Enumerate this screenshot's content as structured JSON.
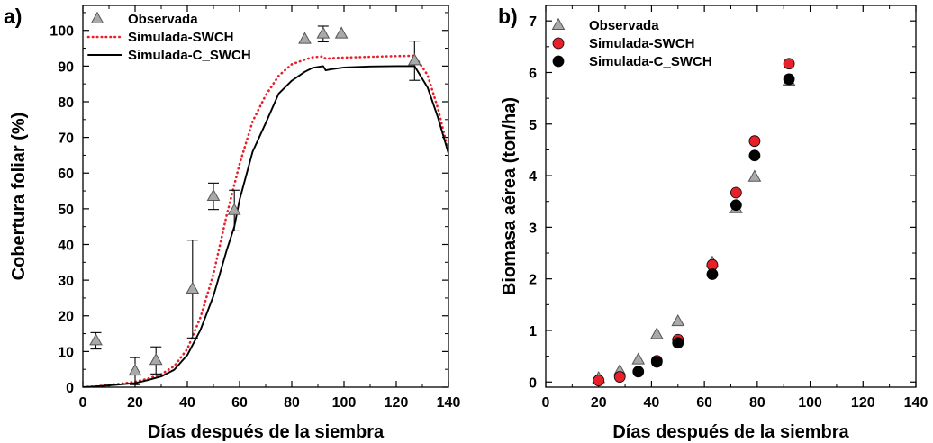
{
  "chart_data": [
    {
      "id": "a",
      "panel_label": "a)",
      "type": "scatter",
      "xlabel": "Días después de la siembra",
      "ylabel": "Cobertura foliar (%)",
      "xlim": [
        0,
        140
      ],
      "ylim": [
        0,
        107
      ],
      "xticks": [
        0,
        20,
        40,
        60,
        80,
        100,
        120,
        140
      ],
      "yticks": [
        0,
        10,
        20,
        30,
        40,
        50,
        60,
        70,
        80,
        90,
        100
      ],
      "legend_position": "top-left",
      "series": [
        {
          "name": "Observada",
          "kind": "scatter",
          "marker": "triangle",
          "color": "#a9a9a9",
          "points": [
            {
              "x": 5,
              "y": 13,
              "err": 2.3
            },
            {
              "x": 20,
              "y": 4.5,
              "err": 3.8
            },
            {
              "x": 28,
              "y": 7.5,
              "err": 3.8
            },
            {
              "x": 42,
              "y": 27.5,
              "err": 13.7
            },
            {
              "x": 50,
              "y": 53.5,
              "err": 3.7
            },
            {
              "x": 58,
              "y": 49.5,
              "err": 5.7
            },
            {
              "x": 85,
              "y": 97.5,
              "err": 0
            },
            {
              "x": 92,
              "y": 99,
              "err": 2.2
            },
            {
              "x": 99,
              "y": 99,
              "err": 0
            },
            {
              "x": 127,
              "y": 91.5,
              "err": 5.5
            }
          ]
        },
        {
          "name": "Simulada-SWCH",
          "kind": "line",
          "style": "dotted",
          "color": "#e8202a",
          "x": [
            0,
            5,
            10,
            15,
            20,
            25,
            30,
            35,
            40,
            45,
            50,
            55,
            60,
            65,
            70,
            75,
            80,
            85,
            88,
            92,
            93,
            95,
            100,
            110,
            120,
            127,
            132,
            136,
            140
          ],
          "y": [
            0,
            0.2,
            0.6,
            1.0,
            1.5,
            2.4,
            3.6,
            5.9,
            10.7,
            19.5,
            31.7,
            48.0,
            62.5,
            74.5,
            81.8,
            87.3,
            90.5,
            91.8,
            92.5,
            92.7,
            92.0,
            92.2,
            92.4,
            92.6,
            92.8,
            92.9,
            87.5,
            78.0,
            66.0
          ]
        },
        {
          "name": "Simulada-C_SWCH",
          "kind": "line",
          "style": "solid",
          "color": "#000000",
          "x": [
            0,
            5,
            10,
            15,
            20,
            25,
            30,
            35,
            40,
            45,
            50,
            55,
            58,
            60,
            65,
            70,
            75,
            80,
            85,
            88,
            92,
            93,
            95,
            100,
            110,
            120,
            127,
            132,
            136,
            140
          ],
          "y": [
            0,
            0.2,
            0.5,
            0.8,
            1.1,
            2.0,
            3.0,
            4.9,
            9.0,
            16.0,
            25.6,
            38.2,
            45.0,
            52.5,
            66.0,
            74.0,
            82.3,
            85.9,
            88.4,
            89.5,
            90.0,
            88.8,
            89.1,
            89.6,
            89.9,
            90.0,
            90.0,
            84.0,
            75.5,
            65.5
          ]
        }
      ]
    },
    {
      "id": "b",
      "panel_label": "b)",
      "type": "scatter",
      "xlabel": "Días después de la siembra",
      "ylabel": "Biomasa aérea (ton/ha)",
      "xlim": [
        0,
        140
      ],
      "ylim": [
        -0.1,
        7.3
      ],
      "xticks": [
        0,
        20,
        40,
        60,
        80,
        100,
        120,
        140
      ],
      "yticks": [
        0,
        1,
        2,
        3,
        4,
        5,
        6,
        7
      ],
      "legend_position": "top-left",
      "series": [
        {
          "name": "Observada",
          "kind": "scatter",
          "marker": "triangle",
          "color": "#a9a9a9",
          "points": [
            {
              "x": 20,
              "y": 0.07
            },
            {
              "x": 28,
              "y": 0.21
            },
            {
              "x": 35,
              "y": 0.43
            },
            {
              "x": 42,
              "y": 0.92
            },
            {
              "x": 50,
              "y": 1.17
            },
            {
              "x": 63,
              "y": 2.31
            },
            {
              "x": 72,
              "y": 3.36
            },
            {
              "x": 79,
              "y": 3.97
            },
            {
              "x": 92,
              "y": 5.83
            }
          ]
        },
        {
          "name": "Simulada-SWCH",
          "kind": "scatter",
          "marker": "circle",
          "color": "#e8202a",
          "points": [
            {
              "x": 20,
              "y": 0.03
            },
            {
              "x": 28,
              "y": 0.1
            },
            {
              "x": 42,
              "y": 0.41
            },
            {
              "x": 50,
              "y": 0.82
            },
            {
              "x": 63,
              "y": 2.27
            },
            {
              "x": 72,
              "y": 3.67
            },
            {
              "x": 79,
              "y": 4.67
            },
            {
              "x": 92,
              "y": 6.17
            }
          ]
        },
        {
          "name": "Simulada-C_SWCH",
          "kind": "scatter",
          "marker": "circle",
          "color": "#000000",
          "points": [
            {
              "x": 35,
              "y": 0.2
            },
            {
              "x": 42,
              "y": 0.39
            },
            {
              "x": 50,
              "y": 0.76
            },
            {
              "x": 63,
              "y": 2.09
            },
            {
              "x": 72,
              "y": 3.43
            },
            {
              "x": 79,
              "y": 4.39
            },
            {
              "x": 92,
              "y": 5.87
            }
          ]
        }
      ]
    }
  ]
}
